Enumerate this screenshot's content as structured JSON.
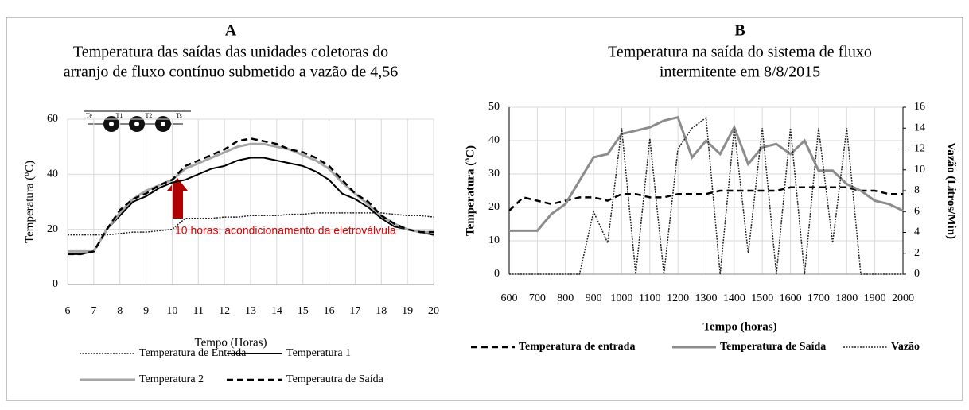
{
  "chart_data": [
    {
      "type": "line",
      "panel": "A",
      "title": [
        "Temperatura das saídas das unidades coletoras do",
        "arranjo de fluxo contínuo submetido a vazão de 4,56"
      ],
      "xlabel": "Tempo (Horas)",
      "ylabel": "Temperatura (ºC)",
      "annotation": "10 horas: acondicionamento da eletroválvula",
      "inset_labels": [
        "Te",
        "T1",
        "T2",
        "Ts"
      ],
      "x": [
        6,
        6.5,
        7,
        7.5,
        8,
        8.5,
        9,
        9.5,
        10,
        10.5,
        11,
        11.5,
        12,
        12.5,
        13,
        13.5,
        14,
        14.5,
        15,
        15.5,
        16,
        16.5,
        17,
        17.5,
        18,
        18.5,
        19,
        19.5,
        20
      ],
      "xlim": [
        6,
        20
      ],
      "xticks": [
        6,
        7,
        8,
        9,
        10,
        11,
        12,
        13,
        14,
        15,
        16,
        17,
        18,
        19,
        20
      ],
      "ylim": [
        0,
        60
      ],
      "yticks": [
        0,
        20,
        40,
        60
      ],
      "grid": true,
      "series": [
        {
          "name": "Temperatura de Entrada",
          "color": "#222222",
          "style": "dotted",
          "values": [
            18,
            18,
            18,
            18,
            18.5,
            19,
            19,
            19.5,
            20,
            24,
            24,
            24,
            24.5,
            24.5,
            25,
            25,
            25,
            25.5,
            25.5,
            26,
            26,
            26,
            26,
            26,
            26,
            25.5,
            25,
            25,
            24.5
          ]
        },
        {
          "name": "Temperatura 1",
          "color": "#000000",
          "style": "solid",
          "values": [
            11,
            11,
            12,
            20,
            25,
            30,
            32,
            35,
            37,
            38,
            40,
            42,
            43,
            45,
            46,
            46,
            45,
            44,
            43,
            41,
            38,
            33,
            31,
            28,
            24,
            21,
            20,
            19,
            18
          ]
        },
        {
          "name": "Temperatura 2",
          "color": "#a6a6a6",
          "style": "thick",
          "values": [
            12,
            12,
            12,
            20,
            26,
            31,
            34,
            36,
            38,
            42,
            44,
            46,
            48,
            50,
            51,
            51,
            50,
            49,
            47,
            45,
            42,
            37,
            33,
            29,
            25,
            22,
            20,
            19,
            19
          ]
        },
        {
          "name": "Temperautra de Saída",
          "color": "#000000",
          "style": "dashed",
          "values": [
            11,
            11,
            12,
            20,
            27,
            31,
            33,
            36,
            38,
            43,
            45,
            47,
            49,
            52,
            53,
            52,
            51,
            49,
            48,
            46,
            43,
            38,
            33,
            30,
            25,
            22,
            20,
            19,
            19
          ]
        }
      ]
    },
    {
      "type": "line",
      "panel": "B",
      "title": [
        "Temperatura na saída do sistema de fluxo",
        "intermitente em 8/8/2015"
      ],
      "xlabel": "Tempo (horas)",
      "ylabel": "Temperatura (ºC)",
      "y2label": "Vazão (Litros/Min)",
      "x": [
        600,
        650,
        700,
        750,
        800,
        850,
        900,
        950,
        1000,
        1050,
        1100,
        1150,
        1200,
        1250,
        1300,
        1350,
        1400,
        1450,
        1500,
        1550,
        1600,
        1650,
        1700,
        1750,
        1800,
        1850,
        1900,
        1950,
        2000
      ],
      "xlim": [
        600,
        2000
      ],
      "xticks": [
        600,
        700,
        800,
        900,
        1000,
        1100,
        1200,
        1300,
        1400,
        1500,
        1600,
        1700,
        1800,
        1900,
        2000
      ],
      "ylim": [
        0,
        50
      ],
      "yticks": [
        0,
        10,
        20,
        30,
        40,
        50
      ],
      "y2lim": [
        0,
        16
      ],
      "y2ticks": [
        0,
        2,
        4,
        6,
        8,
        10,
        12,
        14,
        16
      ],
      "grid": true,
      "series": [
        {
          "name": "Temperatura de entrada",
          "color": "#000000",
          "style": "dashed",
          "values": [
            19,
            23,
            22,
            21,
            22,
            23,
            23,
            22,
            24,
            24,
            23,
            23,
            24,
            24,
            24,
            25,
            25,
            25,
            25,
            25,
            26,
            26,
            26,
            26,
            26,
            25,
            25,
            24,
            24
          ]
        },
        {
          "name": "Temperatura de Saída",
          "color": "#8c8c8c",
          "style": "thick",
          "values": [
            13,
            13,
            13,
            18,
            21,
            28,
            35,
            36,
            42,
            43,
            44,
            46,
            47,
            35,
            40,
            36,
            44,
            33,
            38,
            39,
            36,
            40,
            31,
            31,
            27,
            25,
            22,
            21,
            19
          ]
        },
        {
          "name": "Vazão",
          "color": "#222222",
          "style": "dotted",
          "axis": "y2",
          "values": [
            0,
            0,
            0,
            0,
            0,
            0,
            6,
            3,
            14,
            0,
            13,
            0,
            12,
            14,
            15,
            0,
            14,
            2,
            14,
            0,
            14,
            0,
            14,
            3,
            14,
            0,
            0,
            0,
            0
          ]
        }
      ]
    }
  ]
}
